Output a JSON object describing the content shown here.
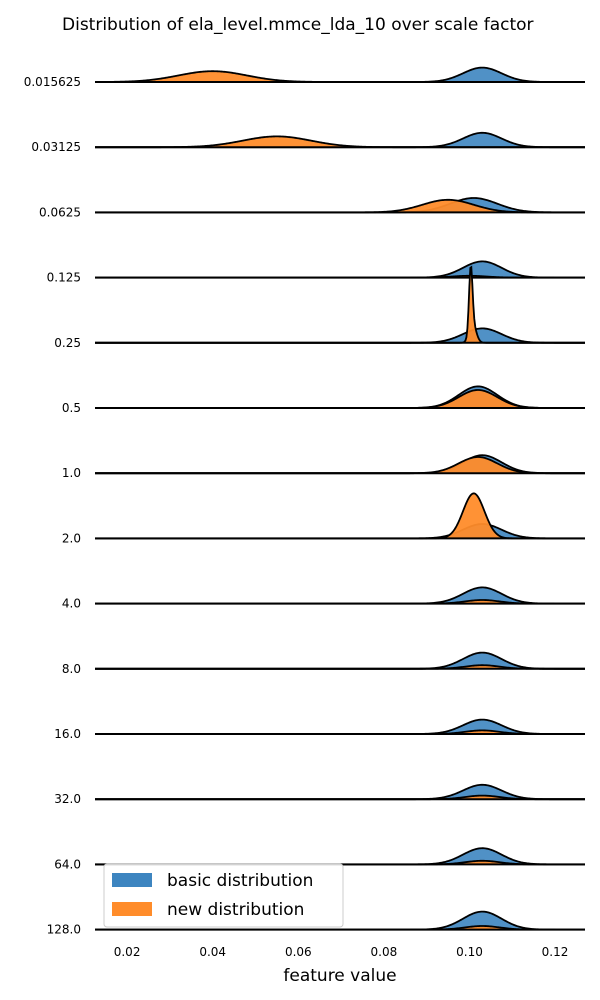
{
  "chart_data": {
    "type": "ridgeline",
    "title": "Distribution of ela_level.mmce_lda_10 over scale factor",
    "xlabel": "feature value",
    "xlim": [
      0.0125,
      0.127
    ],
    "xticks": [
      "0.02",
      "0.04",
      "0.06",
      "0.08",
      "0.10",
      "0.12"
    ],
    "xtick_values": [
      0.02,
      0.04,
      0.06,
      0.08,
      0.1,
      0.12
    ],
    "categories": [
      "0.015625",
      "0.03125",
      "0.0625",
      "0.125",
      "0.25",
      "0.5",
      "1.0",
      "2.0",
      "4.0",
      "8.0",
      "16.0",
      "32.0",
      "64.0",
      "128.0"
    ],
    "legend": {
      "position": "bottom-left",
      "entries": [
        {
          "label": "basic distribution",
          "color": "#3d85c0"
        },
        {
          "label": "new distribution",
          "color": "#ff8c2a"
        }
      ]
    },
    "series": [
      {
        "name": "basic distribution",
        "color": "#3d85c0",
        "peaks": [
          [
            {
              "center": 0.103,
              "width": 0.0045,
              "height": 0.8
            }
          ],
          [
            {
              "center": 0.103,
              "width": 0.0045,
              "height": 0.8
            }
          ],
          [
            {
              "center": 0.101,
              "width": 0.0055,
              "height": 0.8
            }
          ],
          [
            {
              "center": 0.103,
              "width": 0.0045,
              "height": 0.9
            }
          ],
          [
            {
              "center": 0.103,
              "width": 0.0045,
              "height": 0.8
            }
          ],
          [
            {
              "center": 0.102,
              "width": 0.0045,
              "height": 1.2
            }
          ],
          [
            {
              "center": 0.103,
              "width": 0.0045,
              "height": 1.0
            }
          ],
          [
            {
              "center": 0.103,
              "width": 0.0045,
              "height": 0.8
            }
          ],
          [
            {
              "center": 0.103,
              "width": 0.0045,
              "height": 0.9
            }
          ],
          [
            {
              "center": 0.103,
              "width": 0.0045,
              "height": 0.9
            }
          ],
          [
            {
              "center": 0.103,
              "width": 0.0045,
              "height": 0.8
            }
          ],
          [
            {
              "center": 0.103,
              "width": 0.0045,
              "height": 0.8
            }
          ],
          [
            {
              "center": 0.103,
              "width": 0.0045,
              "height": 0.9
            }
          ],
          [
            {
              "center": 0.103,
              "width": 0.0045,
              "height": 1.0
            }
          ]
        ]
      },
      {
        "name": "new distribution",
        "color": "#ff8c2a",
        "peaks": [
          [
            {
              "center": 0.04,
              "width": 0.008,
              "height": 0.6
            }
          ],
          [
            {
              "center": 0.055,
              "width": 0.008,
              "height": 0.6
            }
          ],
          [
            {
              "center": 0.095,
              "width": 0.006,
              "height": 0.7
            }
          ],
          [
            {
              "center": 0.1,
              "width": 0.004,
              "height": 0.1
            }
          ],
          [
            {
              "center": 0.1003,
              "width": 0.0004,
              "height": 3.5
            },
            {
              "center": 0.1008,
              "width": 0.0008,
              "height": 1.0
            }
          ],
          [
            {
              "center": 0.102,
              "width": 0.0045,
              "height": 1.0
            }
          ],
          [
            {
              "center": 0.102,
              "width": 0.0045,
              "height": 0.9
            }
          ],
          [
            {
              "center": 0.101,
              "width": 0.0025,
              "height": 2.5
            }
          ],
          [
            {
              "center": 0.103,
              "width": 0.004,
              "height": 0.2
            }
          ],
          [
            {
              "center": 0.103,
              "width": 0.004,
              "height": 0.2
            }
          ],
          [
            {
              "center": 0.103,
              "width": 0.004,
              "height": 0.2
            }
          ],
          [
            {
              "center": 0.103,
              "width": 0.004,
              "height": 0.2
            }
          ],
          [
            {
              "center": 0.103,
              "width": 0.004,
              "height": 0.2
            }
          ],
          [
            {
              "center": 0.103,
              "width": 0.004,
              "height": 0.2
            }
          ]
        ]
      }
    ]
  }
}
